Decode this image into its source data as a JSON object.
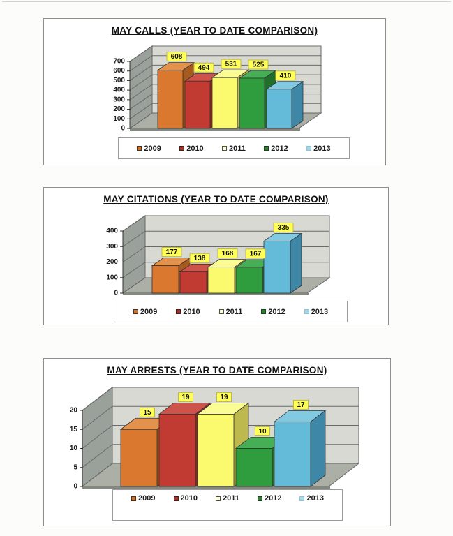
{
  "page": {
    "background": "#fcfcfb",
    "panel_border": "#8f8f8f"
  },
  "chart_style": {
    "wall_back": "#D9D9D4",
    "wall_left": "#9AA09A",
    "floor": "#ABAFA5",
    "floor_edge": "#83877D",
    "grid_line": "#6A6A6A",
    "axis_line": "#333333",
    "outline": "#333333",
    "label_bg": "#FFFF55",
    "label_border": "#BDB84E",
    "label_text": "#111111",
    "tick_text": "#1A1A1A",
    "title_color": "#111111"
  },
  "series_colors": {
    "2009": {
      "front": "#D9782E",
      "top": "#E2924C",
      "side": "#A55A1F",
      "legend_fill": "#C8742F",
      "legend_border": "#4A3020"
    },
    "2010": {
      "front": "#C23B33",
      "top": "#CE544B",
      "side": "#8E2823",
      "legend_fill": "#A03028",
      "legend_border": "#402020"
    },
    "2011": {
      "front": "#FBFA6E",
      "top": "#FCFC94",
      "side": "#BDB94F",
      "legend_fill": "#FFFFE2",
      "legend_border": "#50503A"
    },
    "2012": {
      "front": "#2F9C3E",
      "top": "#46AE54",
      "side": "#20702C",
      "legend_fill": "#2F7D36",
      "legend_border": "#1F3F22"
    },
    "2013": {
      "front": "#63BAD9",
      "top": "#82C9E2",
      "side": "#3F87A6",
      "legend_fill": "#A8D8E8",
      "legend_border": "#8FC4D8"
    }
  },
  "chart_data": [
    {
      "type": "bar",
      "title": "MAY CALLS (YEAR TO DATE COMPARISON)",
      "categories": [
        "2009",
        "2010",
        "2011",
        "2012",
        "2013"
      ],
      "values": [
        608,
        494,
        531,
        525,
        410
      ],
      "xlabel": "",
      "ylabel": "",
      "ylim": [
        0,
        700
      ],
      "ytick_step": 100,
      "grid": true,
      "legend_position": "bottom"
    },
    {
      "type": "bar",
      "title": "MAY CITATIONS (YEAR TO DATE COMPARISON)",
      "categories": [
        "2009",
        "2010",
        "2011",
        "2012",
        "2013"
      ],
      "values": [
        177,
        138,
        168,
        167,
        335
      ],
      "xlabel": "",
      "ylabel": "",
      "ylim": [
        0,
        400
      ],
      "ytick_step": 100,
      "grid": true,
      "legend_position": "bottom"
    },
    {
      "type": "bar",
      "title": "MAY ARRESTS (YEAR TO DATE COMPARISON)",
      "categories": [
        "2009",
        "2010",
        "2011",
        "2012",
        "2013"
      ],
      "values": [
        15,
        19,
        19,
        10,
        17
      ],
      "xlabel": "",
      "ylabel": "",
      "ylim": [
        0,
        20
      ],
      "ytick_step": 5,
      "grid": true,
      "legend_position": "bottom"
    }
  ]
}
